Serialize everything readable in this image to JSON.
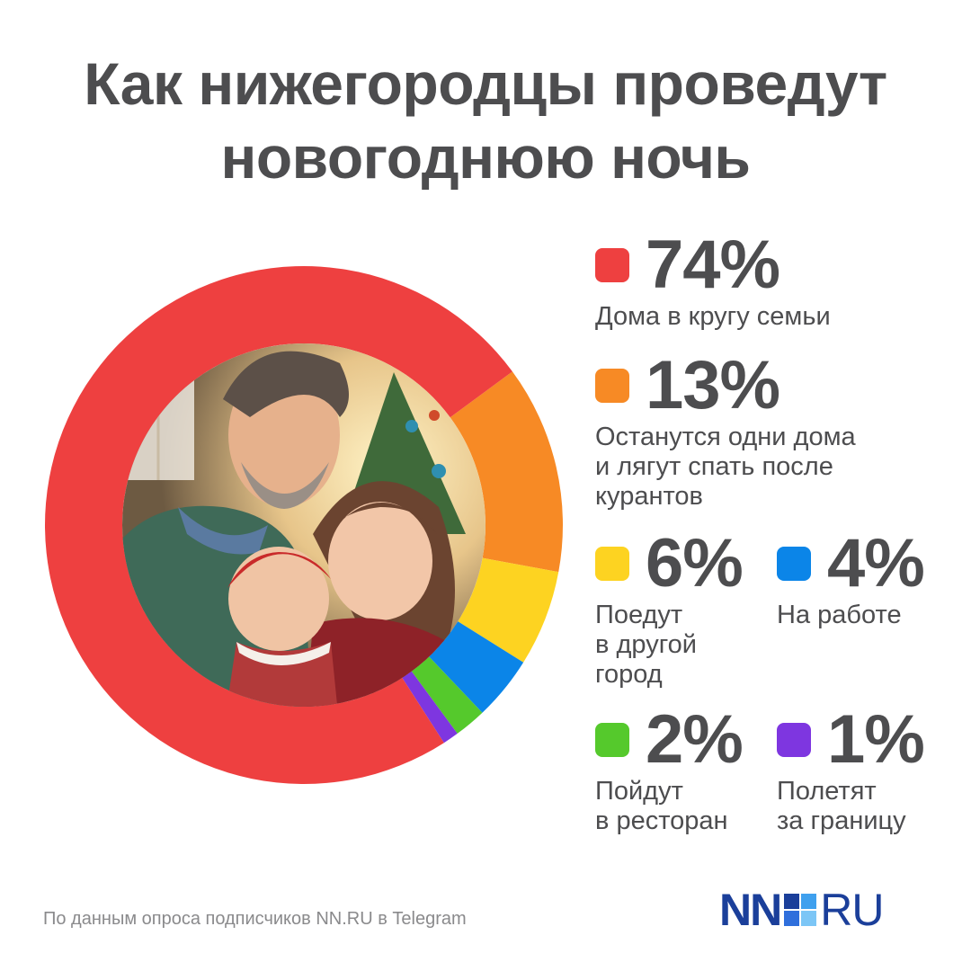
{
  "title_lines": [
    "Как нижегородцы проведут",
    "новогоднюю ночь"
  ],
  "footer": "По данным опроса подписчиков NN.RU в Telegram",
  "logo": {
    "left": "NN",
    "right": "RU",
    "colors": [
      "#1b3f9a",
      "#2f6fdc",
      "#3fa0ee",
      "#7cc6f6"
    ]
  },
  "center_image": {
    "icon": "family-photo",
    "description_hidden": true
  },
  "chart_data": {
    "type": "pie",
    "style": "donut",
    "slices": [
      {
        "value": 74,
        "label": "74%",
        "desc": [
          "Дома в кругу семьи"
        ],
        "color": "#ee4040"
      },
      {
        "value": 13,
        "label": "13%",
        "desc": [
          "Останутся одни дома",
          "и лягут спать после",
          "курантов"
        ],
        "color": "#f78a25"
      },
      {
        "value": 6,
        "label": "6%",
        "desc": [
          "Поедут",
          "в другой",
          "город"
        ],
        "color": "#fdd321"
      },
      {
        "value": 4,
        "label": "4%",
        "desc": [
          "На работе"
        ],
        "color": "#0b85e8"
      },
      {
        "value": 2,
        "label": "2%",
        "desc": [
          "Пойдут",
          "в ресторан"
        ],
        "color": "#55c92c"
      },
      {
        "value": 1,
        "label": "1%",
        "desc": [
          "Полетят",
          "за границу"
        ],
        "color": "#7e36e0"
      }
    ]
  }
}
